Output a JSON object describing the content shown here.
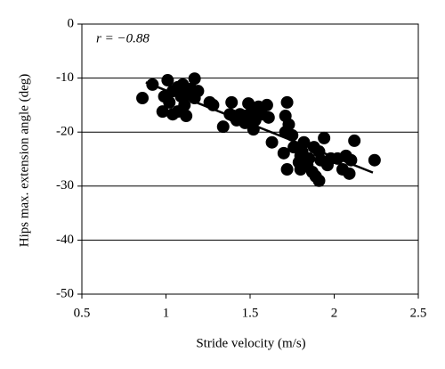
{
  "chart_data": {
    "type": "scatter",
    "xlabel": "Stride velocity (m/s)",
    "ylabel": "Hips max. extension angle (deg)",
    "annotation": "r = −0.88",
    "color": "#000000",
    "xlim": [
      0.5,
      2.5
    ],
    "xticks": [
      0.5,
      1,
      1.5,
      2,
      2.5
    ],
    "ylim": [
      -50,
      0
    ],
    "yticks": [
      -50,
      -40,
      -30,
      -20,
      -10,
      0
    ],
    "grid": true,
    "x": [
      0.86,
      0.92,
      0.98,
      1.01,
      0.99,
      1.02,
      1.04,
      1.07,
      1.09,
      1.11,
      1.1,
      1.12,
      1.15,
      1.17,
      1.17,
      1.19,
      1.12,
      1.04,
      1.07,
      1.26,
      1.28,
      1.34,
      1.38,
      1.39,
      1.42,
      1.44,
      1.47,
      1.49,
      1.51,
      1.53,
      1.55,
      1.57,
      1.6,
      1.61,
      1.63,
      1.47,
      1.4,
      1.52,
      1.7,
      1.71,
      1.72,
      1.71,
      1.73,
      1.75,
      1.76,
      1.72,
      1.79,
      1.8,
      1.81,
      1.82,
      1.84,
      1.85,
      1.87,
      1.88,
      1.89,
      1.91,
      1.92,
      1.94,
      1.96,
      1.98,
      2.02,
      2.05,
      2.07,
      2.09,
      2.12,
      2.1,
      1.91,
      1.8,
      2.24
    ],
    "y": [
      -13.7,
      -11.2,
      -16.2,
      -10.4,
      -13.4,
      -14.5,
      -12.4,
      -11.7,
      -13.4,
      -15.0,
      -11.2,
      -12.9,
      -12.0,
      -10.1,
      -13.7,
      -12.4,
      -17.0,
      -16.7,
      -16.2,
      -14.5,
      -15.0,
      -19.0,
      -16.7,
      -14.5,
      -17.8,
      -16.7,
      -17.0,
      -14.7,
      -16.2,
      -17.8,
      -15.3,
      -16.7,
      -15.0,
      -17.3,
      -21.9,
      -18.3,
      -17.0,
      -19.5,
      -23.9,
      -20.0,
      -14.5,
      -17.0,
      -18.6,
      -20.6,
      -22.8,
      -26.9,
      -25.6,
      -24.4,
      -23.6,
      -21.9,
      -26.1,
      -24.9,
      -27.4,
      -22.8,
      -28.2,
      -29.0,
      -25.2,
      -21.1,
      -26.1,
      -24.9,
      -24.9,
      -26.9,
      -24.4,
      -27.7,
      -21.6,
      -25.2,
      -23.6,
      -26.9,
      -25.2
    ],
    "trend_line": {
      "x": [
        0.88,
        2.23
      ],
      "y": [
        -10.8,
        -27.5
      ]
    }
  }
}
